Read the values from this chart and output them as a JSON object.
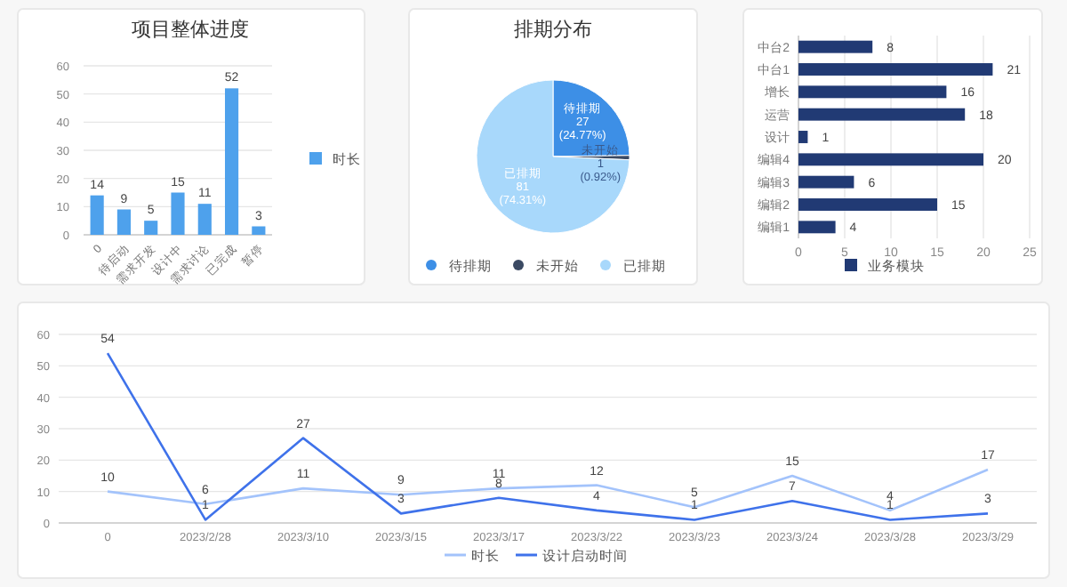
{
  "chart_data": [
    {
      "type": "bar",
      "title": "项目整体进度",
      "categories": [
        "0",
        "待启动",
        "需求开发",
        "设计中",
        "需求讨论",
        "已完成",
        "暂停"
      ],
      "series": [
        {
          "name": "时长",
          "color": "#4ea1ec",
          "values": [
            14,
            9,
            5,
            15,
            11,
            52,
            3
          ]
        }
      ],
      "ylim": [
        0,
        60
      ],
      "yticks": [
        0,
        10,
        20,
        30,
        40,
        50,
        60
      ],
      "grid": "y",
      "legend": "right",
      "data_labels": true
    },
    {
      "type": "pie",
      "title": "排期分布",
      "categories": [
        "待排期",
        "未开始",
        "已排期"
      ],
      "values": [
        27,
        1,
        81
      ],
      "colors": [
        "#3d8fe6",
        "#3b4a63",
        "#a8d8fb"
      ],
      "value_labels": [
        "27\n(24.77%)",
        "1\n(0.92%)",
        "81\n(74.31%)"
      ],
      "legend": "bottom"
    },
    {
      "type": "bar",
      "orientation": "horizontal",
      "categories": [
        "中台2",
        "中台1",
        "增长",
        "运营",
        "设计",
        "编辑4",
        "编辑3",
        "编辑2",
        "编辑1"
      ],
      "series": [
        {
          "name": "业务模块",
          "color": "#213a74",
          "values": [
            8,
            21,
            16,
            18,
            1,
            20,
            6,
            15,
            4
          ]
        }
      ],
      "xlim": [
        0,
        25
      ],
      "xticks": [
        0,
        5,
        10,
        15,
        20,
        25
      ],
      "grid": "x",
      "legend": "bottom",
      "data_labels": true
    },
    {
      "type": "line",
      "categories": [
        "0",
        "2023/2/28",
        "2023/3/10",
        "2023/3/15",
        "2023/3/17",
        "2023/3/22",
        "2023/3/23",
        "2023/3/24",
        "2023/3/28",
        "2023/3/29"
      ],
      "series": [
        {
          "name": "时长",
          "color": "#a3c3fb",
          "values": [
            10,
            6,
            11,
            9,
            11,
            12,
            5,
            15,
            4,
            17
          ]
        },
        {
          "name": "设计启动时间",
          "color": "#3f72ea",
          "values": [
            54,
            1,
            27,
            3,
            8,
            4,
            1,
            7,
            1,
            3
          ]
        }
      ],
      "ylim": [
        0,
        60
      ],
      "yticks": [
        0,
        10,
        20,
        30,
        40,
        50,
        60
      ],
      "grid": "y",
      "legend": "bottom",
      "data_labels": true
    }
  ]
}
